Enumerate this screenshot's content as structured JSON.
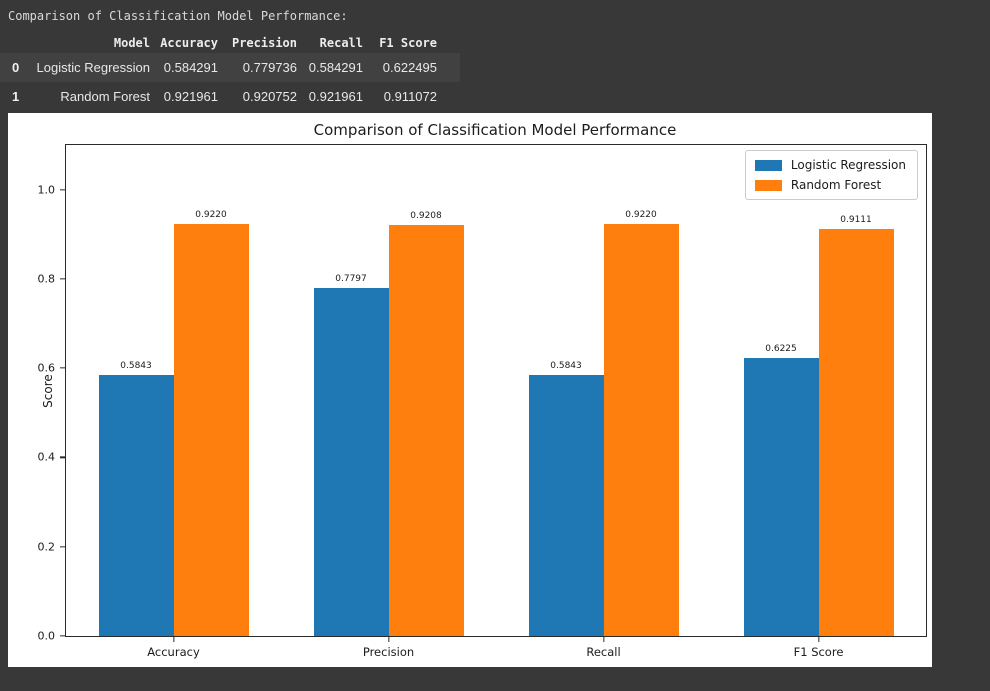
{
  "page": {
    "background": "#383838"
  },
  "console": {
    "title": "Comparison of Classification Model Performance:",
    "table": {
      "index_header": "",
      "columns": [
        "Model",
        "Accuracy",
        "Precision",
        "Recall",
        "F1 Score"
      ],
      "rows": [
        {
          "index": "0",
          "cells": [
            "Logistic Regression",
            "0.584291",
            "0.779736",
            "0.584291",
            "0.622495"
          ]
        },
        {
          "index": "1",
          "cells": [
            "Random Forest",
            "0.921961",
            "0.920752",
            "0.921961",
            "0.911072"
          ]
        }
      ]
    }
  },
  "chart_data": {
    "type": "bar",
    "title": "Comparison of Classification Model Performance",
    "xlabel": "",
    "ylabel": "Score",
    "categories": [
      "Accuracy",
      "Precision",
      "Recall",
      "F1 Score"
    ],
    "series": [
      {
        "name": "Logistic Regression",
        "color": "#1f77b4",
        "values": [
          0.584291,
          0.779736,
          0.584291,
          0.622495
        ],
        "bar_labels": [
          "0.5843",
          "0.7797",
          "0.5843",
          "0.6225"
        ]
      },
      {
        "name": "Random Forest",
        "color": "#ff7f0e",
        "values": [
          0.921961,
          0.920752,
          0.921961,
          0.911072
        ],
        "bar_labels": [
          "0.9220",
          "0.9208",
          "0.9220",
          "0.9111"
        ]
      }
    ],
    "ylim": [
      0,
      1.1
    ],
    "yticks": [
      0.0,
      0.2,
      0.4,
      0.6,
      0.8,
      1.0
    ],
    "grid": false,
    "legend_position": "upper right",
    "plot_background": "#ffffff",
    "spine_color": "#2a2a2a"
  }
}
